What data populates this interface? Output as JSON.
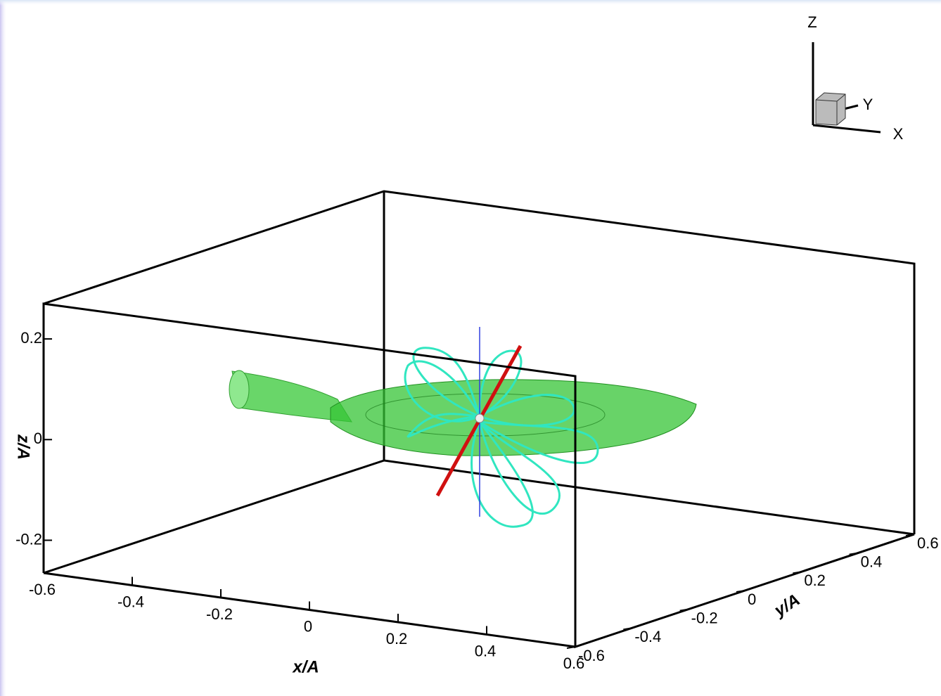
{
  "chart_data": {
    "type": "3d",
    "xlabel": "x/A",
    "ylabel": "y/A",
    "zlabel": "z/A",
    "xlim": [
      -0.6,
      0.6
    ],
    "xticks": [
      -0.6,
      -0.4,
      -0.2,
      0,
      0.2,
      0.4,
      0.6
    ],
    "ylim": [
      -0.6,
      0.6
    ],
    "yticks": [
      -0.6,
      -0.4,
      -0.2,
      0,
      0.2,
      0.4,
      0.6
    ],
    "zlim": [
      -0.265,
      0.27
    ],
    "zticks": [
      -0.2,
      0,
      0.2
    ],
    "orientation_axes": [
      "Z",
      "Y",
      "X"
    ]
  }
}
